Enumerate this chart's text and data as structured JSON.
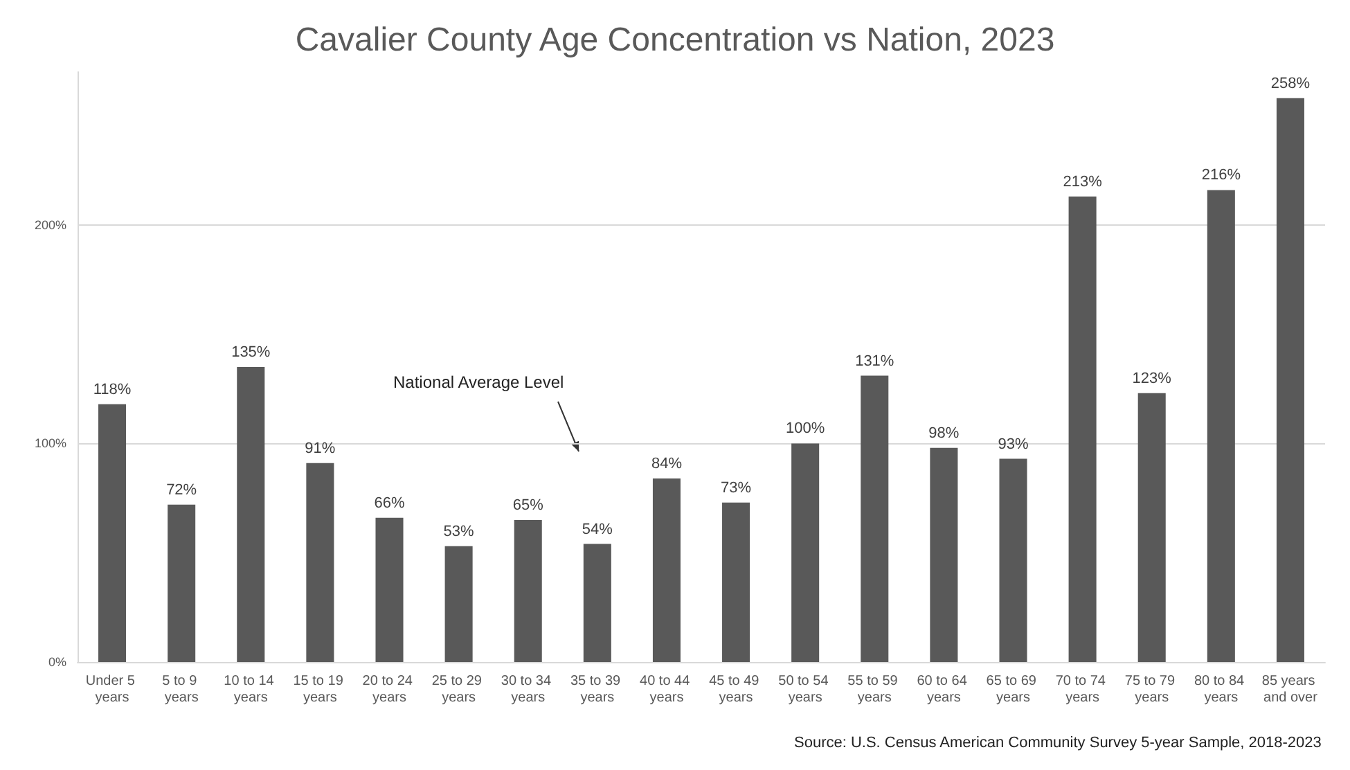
{
  "chart_data": {
    "type": "bar",
    "title": "Cavalier County Age Concentration vs Nation, 2023",
    "categories": [
      "Under 5 years",
      "5 to 9 years",
      "10 to 14 years",
      "15 to 19 years",
      "20 to 24 years",
      "25 to 29 years",
      "30 to 34 years",
      "35 to 39 years",
      "40 to 44 years",
      "45 to 49 years",
      "50 to 54 years",
      "55 to 59 years",
      "60 to 64 years",
      "65 to 69 years",
      "70 to 74 years",
      "75 to 79 years",
      "80 to 84 years",
      "85 years and over"
    ],
    "values": [
      118,
      72,
      135,
      91,
      66,
      53,
      65,
      54,
      84,
      73,
      100,
      131,
      98,
      93,
      213,
      123,
      216,
      258
    ],
    "color": "#595959",
    "value_labels": [
      "118%",
      "72%",
      "135%",
      "91%",
      "66%",
      "53%",
      "65%",
      "54%",
      "84%",
      "73%",
      "100%",
      "131%",
      "98%",
      "93%",
      "213%",
      "123%",
      "216%",
      "258%"
    ],
    "ylim": [
      0,
      270
    ],
    "yticks": [
      {
        "value": 0,
        "label": "0%"
      },
      {
        "value": 100,
        "label": "100%"
      },
      {
        "value": 200,
        "label": "200%"
      }
    ],
    "grid": "y",
    "annotations": [
      "National Average Level",
      "Source: U.S. Census American Community Survey 5-year Sample, 2018-2023"
    ]
  }
}
